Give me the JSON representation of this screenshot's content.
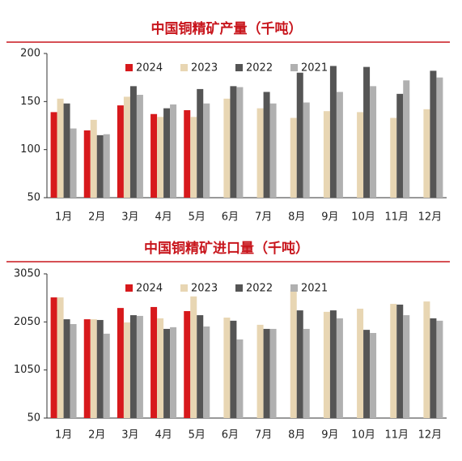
{
  "chart_data": [
    {
      "type": "bar",
      "title": "中国铜精矿产量（千吨）",
      "categories": [
        "1月",
        "2月",
        "3月",
        "4月",
        "5月",
        "6月",
        "7月",
        "8月",
        "9月",
        "10月",
        "11月",
        "12月"
      ],
      "series": [
        {
          "name": "2024",
          "color": "#d7191c",
          "values": [
            139,
            120,
            146,
            137,
            141,
            null,
            null,
            null,
            null,
            null,
            null,
            null
          ]
        },
        {
          "name": "2023",
          "color": "#e8d6b3",
          "values": [
            153,
            131,
            155,
            134,
            134,
            153,
            143,
            133,
            140,
            139,
            133,
            142
          ]
        },
        {
          "name": "2022",
          "color": "#555555",
          "values": [
            148,
            115,
            166,
            143,
            163,
            166,
            160,
            180,
            187,
            186,
            158,
            182
          ]
        },
        {
          "name": "2021",
          "color": "#b0b0b0",
          "values": [
            122,
            116,
            157,
            147,
            148,
            165,
            148,
            149,
            160,
            166,
            172,
            175
          ]
        }
      ],
      "ylim": [
        50,
        200
      ],
      "yticks": [
        50,
        100,
        150,
        200
      ],
      "legend": "top"
    },
    {
      "type": "bar",
      "title": "中国铜精矿进口量（千吨）",
      "categories": [
        "1月",
        "2月",
        "3月",
        "4月",
        "5月",
        "6月",
        "7月",
        "8月",
        "9月",
        "10月",
        "11月",
        "12月"
      ],
      "series": [
        {
          "name": "2024",
          "color": "#d7191c",
          "values": [
            2560,
            2105,
            2340,
            2360,
            2275,
            null,
            null,
            null,
            null,
            null,
            null,
            null
          ]
        },
        {
          "name": "2023",
          "color": "#e8d6b3",
          "values": [
            2560,
            2105,
            2040,
            2125,
            2580,
            2140,
            1990,
            2715,
            2260,
            2325,
            2425,
            2475
          ]
        },
        {
          "name": "2022",
          "color": "#555555",
          "values": [
            2105,
            2090,
            2190,
            1905,
            2190,
            2075,
            1905,
            2290,
            2290,
            1885,
            2410,
            2125
          ]
        },
        {
          "name": "2021",
          "color": "#b0b0b0",
          "values": [
            2005,
            1805,
            2175,
            1940,
            1955,
            1685,
            1905,
            1905,
            2125,
            1820,
            2190,
            2075
          ]
        }
      ],
      "ylim": [
        50,
        3050
      ],
      "yticks": [
        50,
        1050,
        2050,
        3050
      ],
      "legend": "top"
    }
  ]
}
